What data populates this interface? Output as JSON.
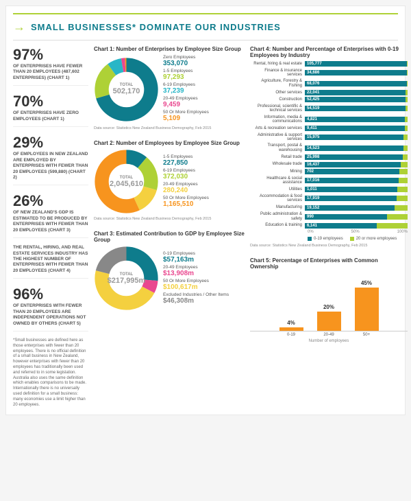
{
  "header": {
    "title": "SMALL BUSINESSES* DOMINATE OUR INDUSTRIES"
  },
  "stats": [
    {
      "pct": "97%",
      "desc": "OF ENTERPRISES HAVE FEWER THAN 20 EMPLOYEES (487,602 ENTERPRISES) (CHART 1)"
    },
    {
      "pct": "70%",
      "desc": "OF ENTERPRISES HAVE ZERO EMPLOYEES (CHART 1)"
    },
    {
      "pct": "29%",
      "desc": "OF EMPLOYEES IN NEW ZEALAND ARE EMPLOYED BY ENTERPRISES WITH FEWER THAN 20 EMPLOYEES (599,880) (CHART 2)"
    },
    {
      "pct": "26%",
      "desc": "OF NEW ZEALAND'S GDP IS ESTIMATED TO BE PRODUCED BY ENTERPRISES WITH FEWER THAN 20 EMPLOYEES (CHART 3)"
    },
    {
      "pct": "",
      "desc": "THE RENTAL, HIRING, AND REAL ESTATE SERVICES INDUSTRY HAS THE HIGHEST NUMBER OF ENTERPRISES WITH FEWER THAN 20 EMPLOYEES (CHART 4)"
    },
    {
      "pct": "96%",
      "desc": "OF ENTERPRISES WITH FEWER THAN 20 EMPLOYEES ARE INDEPENDENT OPERATIONS NOT OWNED BY OTHERS (CHART 5)"
    }
  ],
  "footnote": "*Small businesses are defined here as those enterprises with fewer than 20 employees. There is no official definition of a small business in New Zealand, however enterprises with fewer than 20 employees has traditionally been used and referred to in some legislation. Australia also uses the same definition which enables comparisons to be made. Internationally there is no universally used definition for a small business: many economies use a limit higher than 20 employees.",
  "chart1": {
    "title": "Chart 1: Number of Enterprises by Employee Size Group",
    "total_label": "TOTAL",
    "total": "502,170",
    "slices": [
      {
        "label": "Zero Employees",
        "value": "353,070",
        "color": "#0e7c8c",
        "pct": 70.3
      },
      {
        "label": "1-5 Employees",
        "value": "97,293",
        "color": "#aed136",
        "pct": 19.4
      },
      {
        "label": "6-19 Employees",
        "value": "37,239",
        "color": "#28b6c7",
        "pct": 7.4
      },
      {
        "label": "20-49 Employees",
        "value": "9,459",
        "color": "#e9488f",
        "pct": 1.9
      },
      {
        "label": "50 Or More Employees",
        "value": "5,109",
        "color": "#f7941e",
        "pct": 1.0
      }
    ],
    "source": "Data source: Statistics New Zealand Business Demography, Feb 2015"
  },
  "chart2": {
    "title": "Chart 2: Number of Employees by Employee Size Group",
    "total_label": "TOTAL",
    "total": "2,045,610",
    "slices": [
      {
        "label": "1-5 Employees",
        "value": "227,850",
        "color": "#0e7c8c",
        "pct": 11.1
      },
      {
        "label": "6-19 Employees",
        "value": "372,030",
        "color": "#aed136",
        "pct": 18.2
      },
      {
        "label": "20-49 Employees",
        "value": "280,240",
        "color": "#f4d03f",
        "pct": 13.7
      },
      {
        "label": "50 Or More Employees",
        "value": "1,165,510",
        "color": "#f7941e",
        "pct": 57.0
      }
    ],
    "source": "Data source: Statistics New Zealand Business Demography, Feb 2015"
  },
  "chart3": {
    "title": "Chart 3: Estimated Contribution to GDP by Employee Size Group",
    "total_label": "TOTAL",
    "total": "$217,995m",
    "slices": [
      {
        "label": "0-19 Employees",
        "value": "$57,163m",
        "color": "#0e7c8c",
        "pct": 26.2
      },
      {
        "label": "20-49 Employees",
        "value": "$13,908m",
        "color": "#e9488f",
        "pct": 6.4
      },
      {
        "label": "50 Or More Employees",
        "value": "$100,617m",
        "color": "#f4d03f",
        "pct": 46.2
      },
      {
        "label": "Excluded Industries / Other Items",
        "value": "$46,308m",
        "color": "#888888",
        "pct": 21.2
      }
    ],
    "source": ""
  },
  "chart4": {
    "title": "Chart 4: Number and Percentage of Enterprises with 0-19 Employees by Industry",
    "color1": "#0e7c8c",
    "color2": "#aed136",
    "rows": [
      {
        "label": "Rental, hiring & real estate",
        "v": "105,777",
        "p1": 99,
        "p2": 1
      },
      {
        "label": "Finance & insurance services",
        "v": "34,686",
        "p1": 99,
        "p2": 1
      },
      {
        "label": "Agriculture, Forestry & Fishing",
        "v": "68,076",
        "p1": 99,
        "p2": 1
      },
      {
        "label": "Other services",
        "v": "22,041",
        "p1": 98,
        "p2": 2
      },
      {
        "label": "Construction",
        "v": "52,425",
        "p1": 98,
        "p2": 2
      },
      {
        "label": "Professional, scientific & technical services",
        "v": "54,519",
        "p1": 98,
        "p2": 2
      },
      {
        "label": "Information, media & communications",
        "v": "4,821",
        "p1": 97,
        "p2": 3
      },
      {
        "label": "Arts & recreation services",
        "v": "9,411",
        "p1": 97,
        "p2": 3
      },
      {
        "label": "Administrative & support services",
        "v": "15,975",
        "p1": 96,
        "p2": 4
      },
      {
        "label": "Transport, postal & warehousing",
        "v": "14,523",
        "p1": 96,
        "p2": 4
      },
      {
        "label": "Retail trade",
        "v": "25,998",
        "p1": 95,
        "p2": 5
      },
      {
        "label": "Wholesale trade",
        "v": "16,437",
        "p1": 93,
        "p2": 7
      },
      {
        "label": "Mining",
        "v": "702",
        "p1": 92,
        "p2": 8
      },
      {
        "label": "Healthcare & social assistance",
        "v": "17,016",
        "p1": 91,
        "p2": 9
      },
      {
        "label": "Utilities",
        "v": "1,011",
        "p1": 90,
        "p2": 10
      },
      {
        "label": "Accommodation & food services",
        "v": "17,919",
        "p1": 89,
        "p2": 11
      },
      {
        "label": "Manufacturing",
        "v": "19,152",
        "p1": 87,
        "p2": 13
      },
      {
        "label": "Public administration & safety",
        "v": "990",
        "p1": 80,
        "p2": 20
      },
      {
        "label": "Education & training",
        "v": "6,141",
        "p1": 70,
        "p2": 30
      }
    ],
    "ticks": [
      "0%",
      "50%",
      "100%"
    ],
    "legend": [
      "0-19 employees",
      "20 or more employees"
    ],
    "source": "Data source: Statistics New Zealand Business Demography, Feb 2015"
  },
  "chart5": {
    "title": "Chart 5: Percentage of Enterprises with Common Ownership",
    "color": "#f7941e",
    "bars": [
      {
        "label": "0-19",
        "pct": 4
      },
      {
        "label": "20-49",
        "pct": 20
      },
      {
        "label": "50+",
        "pct": 45
      }
    ],
    "xlabel": "Number of employees",
    "ymax": 50
  }
}
